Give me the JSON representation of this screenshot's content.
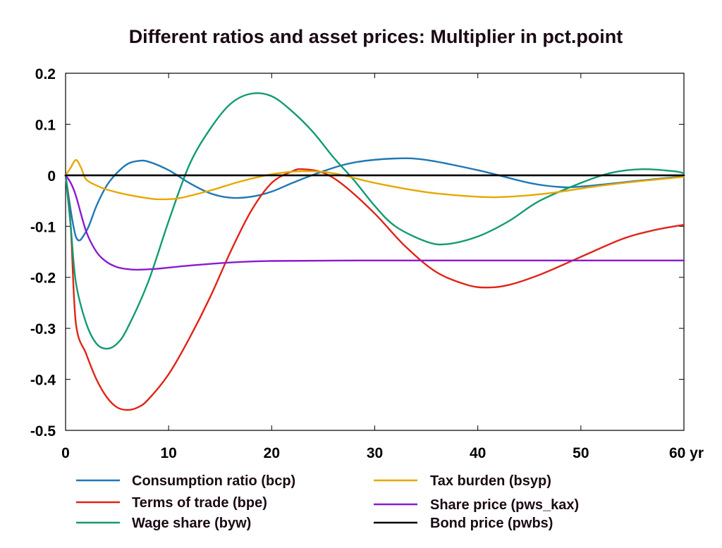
{
  "chart_data": {
    "type": "line",
    "title": "Different ratios and asset prices: Multiplier in pct.point",
    "x_unit": "yr",
    "xlim": [
      0,
      60
    ],
    "ylim": [
      -0.5,
      0.2
    ],
    "x_ticks": [
      0,
      10,
      20,
      30,
      40,
      50,
      60
    ],
    "x_tick_labels": [
      "0",
      "10",
      "20",
      "30",
      "40",
      "50",
      "60 yr"
    ],
    "y_ticks": [
      0.2,
      0.1,
      0,
      -0.1,
      -0.2,
      -0.3,
      -0.4,
      -0.5
    ],
    "y_tick_labels": [
      "0.2",
      "0.1",
      "0",
      "-0.1",
      "-0.2",
      "-0.3",
      "-0.4",
      "-0.5"
    ],
    "grid": false,
    "legend_position": "bottom",
    "series": [
      {
        "name": "Consumption ratio (bcp)",
        "color": "#1f77b4",
        "points": [
          [
            0,
            0
          ],
          [
            1,
            -0.12
          ],
          [
            2,
            -0.11
          ],
          [
            3,
            -0.06
          ],
          [
            4,
            -0.02
          ],
          [
            5,
            0.005
          ],
          [
            6,
            0.022
          ],
          [
            7,
            0.028
          ],
          [
            8,
            0.027
          ],
          [
            10,
            0.01
          ],
          [
            12,
            -0.015
          ],
          [
            14,
            -0.035
          ],
          [
            16,
            -0.044
          ],
          [
            18,
            -0.042
          ],
          [
            20,
            -0.032
          ],
          [
            22,
            -0.015
          ],
          [
            25,
            0.008
          ],
          [
            28,
            0.025
          ],
          [
            32,
            0.033
          ],
          [
            35,
            0.03
          ],
          [
            40,
            0.01
          ],
          [
            45,
            -0.015
          ],
          [
            48,
            -0.023
          ],
          [
            50,
            -0.022
          ],
          [
            55,
            -0.012
          ],
          [
            60,
            -0.002
          ]
        ]
      },
      {
        "name": "Terms of trade (bpe)",
        "color": "#e02418",
        "points": [
          [
            0,
            0
          ],
          [
            0.5,
            -0.1
          ],
          [
            1,
            -0.29
          ],
          [
            2,
            -0.35
          ],
          [
            3,
            -0.4
          ],
          [
            4,
            -0.435
          ],
          [
            5,
            -0.455
          ],
          [
            6,
            -0.46
          ],
          [
            7,
            -0.455
          ],
          [
            8,
            -0.44
          ],
          [
            10,
            -0.39
          ],
          [
            12,
            -0.32
          ],
          [
            14,
            -0.24
          ],
          [
            16,
            -0.15
          ],
          [
            18,
            -0.07
          ],
          [
            20,
            -0.015
          ],
          [
            22,
            0.008
          ],
          [
            23,
            0.012
          ],
          [
            25,
            0.005
          ],
          [
            27,
            -0.02
          ],
          [
            30,
            -0.075
          ],
          [
            33,
            -0.14
          ],
          [
            36,
            -0.19
          ],
          [
            39,
            -0.215
          ],
          [
            41,
            -0.22
          ],
          [
            43,
            -0.215
          ],
          [
            46,
            -0.195
          ],
          [
            50,
            -0.16
          ],
          [
            54,
            -0.125
          ],
          [
            57,
            -0.108
          ],
          [
            60,
            -0.097
          ]
        ]
      },
      {
        "name": "Wage share (byw)",
        "color": "#129a74",
        "points": [
          [
            0,
            0
          ],
          [
            0.5,
            -0.1
          ],
          [
            1,
            -0.21
          ],
          [
            2,
            -0.29
          ],
          [
            3,
            -0.33
          ],
          [
            4,
            -0.34
          ],
          [
            5,
            -0.33
          ],
          [
            6,
            -0.3
          ],
          [
            8,
            -0.21
          ],
          [
            10,
            -0.09
          ],
          [
            12,
            0.02
          ],
          [
            14,
            0.09
          ],
          [
            16,
            0.14
          ],
          [
            18,
            0.16
          ],
          [
            20,
            0.155
          ],
          [
            22,
            0.125
          ],
          [
            24,
            0.085
          ],
          [
            26,
            0.035
          ],
          [
            28,
            -0.01
          ],
          [
            30,
            -0.06
          ],
          [
            32,
            -0.1
          ],
          [
            35,
            -0.13
          ],
          [
            37,
            -0.135
          ],
          [
            40,
            -0.12
          ],
          [
            43,
            -0.09
          ],
          [
            46,
            -0.05
          ],
          [
            50,
            -0.015
          ],
          [
            53,
            0.005
          ],
          [
            56,
            0.012
          ],
          [
            59,
            0.008
          ],
          [
            60,
            0.004
          ]
        ]
      },
      {
        "name": "Tax burden (bsyp)",
        "color": "#e6a800",
        "points": [
          [
            0,
            0
          ],
          [
            0.5,
            0.015
          ],
          [
            1,
            0.03
          ],
          [
            1.5,
            0.015
          ],
          [
            2,
            -0.008
          ],
          [
            3,
            -0.02
          ],
          [
            4,
            -0.028
          ],
          [
            6,
            -0.038
          ],
          [
            8,
            -0.045
          ],
          [
            9,
            -0.047
          ],
          [
            11,
            -0.045
          ],
          [
            14,
            -0.03
          ],
          [
            17,
            -0.012
          ],
          [
            20,
            0.002
          ],
          [
            23,
            0.008
          ],
          [
            26,
            0.004
          ],
          [
            30,
            -0.015
          ],
          [
            35,
            -0.033
          ],
          [
            40,
            -0.042
          ],
          [
            43,
            -0.042
          ],
          [
            47,
            -0.035
          ],
          [
            51,
            -0.023
          ],
          [
            55,
            -0.013
          ],
          [
            60,
            -0.003
          ]
        ]
      },
      {
        "name": "Share price (pws_kax)",
        "color": "#8a1ad0",
        "points": [
          [
            0,
            0
          ],
          [
            0.5,
            -0.015
          ],
          [
            1,
            -0.04
          ],
          [
            2,
            -0.11
          ],
          [
            3,
            -0.15
          ],
          [
            4,
            -0.17
          ],
          [
            5,
            -0.18
          ],
          [
            6,
            -0.184
          ],
          [
            7,
            -0.185
          ],
          [
            9,
            -0.183
          ],
          [
            12,
            -0.177
          ],
          [
            16,
            -0.171
          ],
          [
            20,
            -0.168
          ],
          [
            30,
            -0.167
          ],
          [
            40,
            -0.167
          ],
          [
            50,
            -0.167
          ],
          [
            60,
            -0.167
          ]
        ]
      },
      {
        "name": "Bond price (pwbs)",
        "color": "#000000",
        "points": [
          [
            0,
            0
          ],
          [
            60,
            0
          ]
        ]
      }
    ]
  }
}
